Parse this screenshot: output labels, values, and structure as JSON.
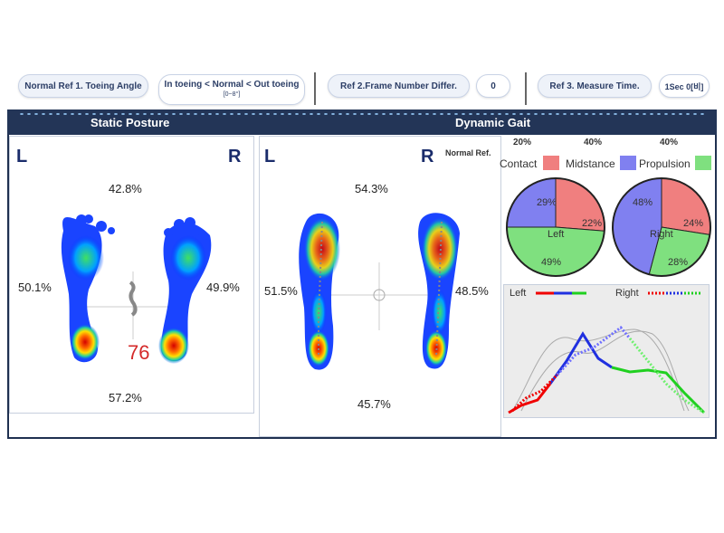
{
  "refs": {
    "ref1_label": "Normal Ref 1. Toeing Angle",
    "ref1_value_line1": "In toeing < Normal < Out toeing",
    "ref1_value_line2": "[0~8°]",
    "ref2_label": "Ref 2.Frame Number Differ.",
    "ref2_value": "0",
    "ref3_label": "Ref 3. Measure Time.",
    "ref3_value": "1Sec 0[비]"
  },
  "static": {
    "title": "Static Posture",
    "left_letter": "L",
    "right_letter": "R",
    "top_pct": "42.8%",
    "bottom_pct": "57.2%",
    "left_pct": "50.1%",
    "right_pct": "49.9%",
    "score": "76"
  },
  "dynamic": {
    "title": "Dynamic Gait",
    "left_letter": "L",
    "right_letter": "R",
    "normal_ref": "Normal Ref.",
    "top_pct": "54.3%",
    "bottom_pct": "45.7%",
    "left_pct": "51.5%",
    "right_pct": "48.5%"
  },
  "phases": {
    "ref_pct_1": "20%",
    "ref_pct_2": "40%",
    "ref_pct_3": "40%",
    "legend": [
      "Contact",
      "Midstance",
      "Propulsion"
    ],
    "colors": {
      "contact": "#f07f7f",
      "midstance": "#8080f0",
      "propulsion": "#7fe07f"
    },
    "left_pie": {
      "label": "Left",
      "contact": "22%",
      "midstance": "29%",
      "propulsion": "49%"
    },
    "right_pie": {
      "label": "Right",
      "contact": "24%",
      "midstance": "48%",
      "propulsion": "28%"
    }
  },
  "gait_chart": {
    "left_label": "Left",
    "right_label": "Right"
  }
}
